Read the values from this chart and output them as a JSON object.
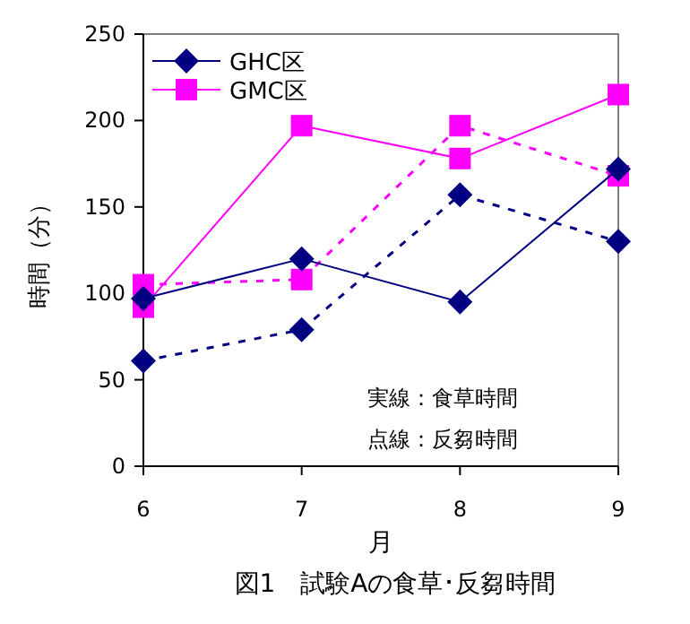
{
  "chart_data": {
    "type": "line",
    "title": "図1　試験Aの食草･反芻時間",
    "xlabel": "月",
    "ylabel": "時間（分）",
    "x": [
      6,
      7,
      8,
      9
    ],
    "xlim": [
      6,
      9
    ],
    "xticks": [
      6,
      7,
      8,
      9
    ],
    "ylim": [
      0,
      250
    ],
    "yticks": [
      0,
      50,
      100,
      150,
      200,
      250
    ],
    "legend": "top left",
    "grid": false,
    "series": [
      {
        "name": "GHC区",
        "color": "#000080",
        "marker": "diamond",
        "line_style": "solid",
        "values": [
          97,
          120,
          95,
          172
        ]
      },
      {
        "name": "GMC区",
        "color": "#ff00ff",
        "marker": "square",
        "line_style": "solid",
        "values": [
          92,
          197,
          178,
          215
        ]
      },
      {
        "color": "#000080",
        "marker": "diamond",
        "line_style": "dashed",
        "values": [
          61,
          79,
          157,
          130
        ]
      },
      {
        "color": "#ff00ff",
        "marker": "square",
        "line_style": "dashed",
        "values": [
          105,
          108,
          197,
          168
        ]
      }
    ],
    "annotations": [
      "実線：食草時間",
      "点線：反芻時間"
    ]
  }
}
